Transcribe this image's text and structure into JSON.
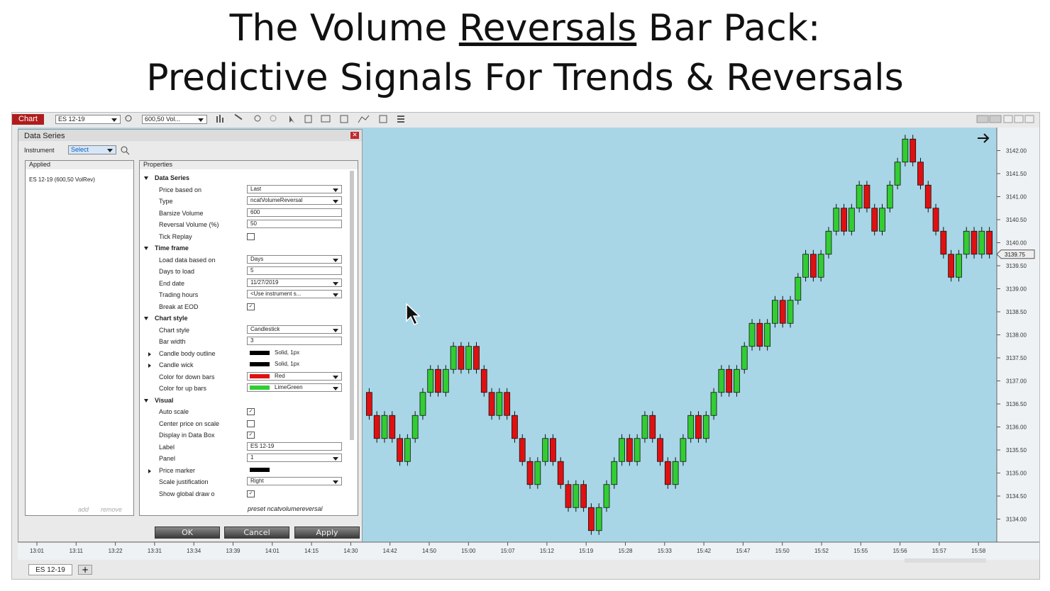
{
  "header": {
    "title_before": "The Volume ",
    "title_underlined": "Reversals",
    "title_after": " Bar Pack:",
    "title_line2": "Predictive Signals For Trends & Reversals"
  },
  "toolbar": {
    "tab": "Chart",
    "instrument": "ES 12-19",
    "series": "600,50 Vol..."
  },
  "dialog": {
    "title": "Data Series",
    "instrument_label": "Instrument",
    "instrument_value": "Select",
    "applied_header": "Applied",
    "applied_item": "ES 12-19 (600,50 VolRev)",
    "add": "add",
    "remove": "remove",
    "properties_header": "Properties",
    "sections": [
      {
        "name": "Data Series",
        "rows": [
          {
            "label": "Price based on",
            "value": "Last",
            "input": "dropdown"
          },
          {
            "label": "Type",
            "value": "ncatVolumeReversal",
            "input": "dropdown"
          },
          {
            "label": "Barsize Volume",
            "value": "600",
            "input": "text"
          },
          {
            "label": "Reversal Volume (%)",
            "value": "50",
            "input": "text"
          },
          {
            "label": "Tick Replay",
            "checked": false
          }
        ]
      },
      {
        "name": "Time frame",
        "rows": [
          {
            "label": "Load data based on",
            "value": "Days",
            "input": "dropdown"
          },
          {
            "label": "Days to load",
            "value": "5",
            "input": "text"
          },
          {
            "label": "End date",
            "value": "11/27/2019",
            "input": "dropdown"
          },
          {
            "label": "Trading hours",
            "value": "<Use instrument s...",
            "input": "dropdown"
          },
          {
            "label": "Break at EOD",
            "checked": true
          }
        ]
      },
      {
        "name": "Chart style",
        "rows": [
          {
            "label": "Chart style",
            "value": "Candlestick",
            "input": "dropdown"
          },
          {
            "label": "Bar width",
            "value": "3",
            "input": "text"
          },
          {
            "label": "Candle body outline",
            "value": "Solid, 1px",
            "swatch": "#000000",
            "expandable": true
          },
          {
            "label": "Candle wick",
            "value": "Solid, 1px",
            "swatch": "#000000",
            "expandable": true
          },
          {
            "label": "Color for down bars",
            "value": "Red",
            "input": "dropdown",
            "swatch": "#e01010"
          },
          {
            "label": "Color for up bars",
            "value": "LimeGreen",
            "input": "dropdown",
            "swatch": "#32cd32"
          }
        ]
      },
      {
        "name": "Visual",
        "rows": [
          {
            "label": "Auto scale",
            "checked": true
          },
          {
            "label": "Center price on scale",
            "checked": false
          },
          {
            "label": "Display in Data Box",
            "checked": true
          },
          {
            "label": "Label",
            "value": "ES 12-19",
            "input": "text"
          },
          {
            "label": "Panel",
            "value": "1",
            "input": "dropdown"
          },
          {
            "label": "Price marker",
            "swatch": "#000000",
            "expandable": true
          },
          {
            "label": "Scale justification",
            "value": "Right",
            "input": "dropdown"
          },
          {
            "label": "Show global draw o",
            "checked": true
          }
        ]
      }
    ],
    "preset": "preset ncatvolumereversal",
    "buttons": [
      "OK",
      "Cancel",
      "Apply"
    ]
  },
  "chart_data": {
    "type": "candlestick",
    "up_color": "#32cd32",
    "down_color": "#e01010",
    "open": [
      3136.75,
      3136.25,
      3135.75,
      3136.25,
      3135.75,
      3135.25,
      3135.75,
      3136.25,
      3136.75,
      3137.25,
      3136.75,
      3137.25,
      3137.75,
      3137.25,
      3137.75,
      3137.25,
      3136.75,
      3136.25,
      3136.75,
      3136.25,
      3135.75,
      3135.25,
      3134.75,
      3135.25,
      3135.75,
      3135.25,
      3134.75,
      3134.25,
      3134.75,
      3134.25,
      3133.75,
      3134.25,
      3134.75,
      3135.25,
      3135.75,
      3135.25,
      3135.75,
      3136.25,
      3135.75,
      3135.25,
      3134.75,
      3135.25,
      3135.75,
      3136.25,
      3135.75,
      3136.25,
      3136.75,
      3137.25,
      3136.75,
      3137.25,
      3137.75,
      3138.25,
      3137.75,
      3138.25,
      3138.75,
      3138.25,
      3138.75,
      3139.25,
      3139.75,
      3139.25,
      3139.75,
      3140.25,
      3140.75,
      3140.25,
      3140.75,
      3141.25,
      3140.75,
      3140.25,
      3140.75,
      3141.25,
      3141.75,
      3142.25,
      3141.75,
      3141.25,
      3140.75,
      3140.25,
      3139.75,
      3139.25,
      3139.75,
      3140.25,
      3139.75,
      3140.25
    ],
    "close": [
      3136.25,
      3135.75,
      3136.25,
      3135.75,
      3135.25,
      3135.75,
      3136.25,
      3136.75,
      3137.25,
      3136.75,
      3137.25,
      3137.75,
      3137.25,
      3137.75,
      3137.25,
      3136.75,
      3136.25,
      3136.75,
      3136.25,
      3135.75,
      3135.25,
      3134.75,
      3135.25,
      3135.75,
      3135.25,
      3134.75,
      3134.25,
      3134.75,
      3134.25,
      3133.75,
      3134.25,
      3134.75,
      3135.25,
      3135.75,
      3135.25,
      3135.75,
      3136.25,
      3135.75,
      3135.25,
      3134.75,
      3135.25,
      3135.75,
      3136.25,
      3135.75,
      3136.25,
      3136.75,
      3137.25,
      3136.75,
      3137.25,
      3137.75,
      3138.25,
      3137.75,
      3138.25,
      3138.75,
      3138.25,
      3138.75,
      3139.25,
      3139.75,
      3139.25,
      3139.75,
      3140.25,
      3140.75,
      3140.25,
      3140.75,
      3141.25,
      3140.75,
      3140.25,
      3140.75,
      3141.25,
      3141.75,
      3142.25,
      3141.75,
      3141.25,
      3140.75,
      3140.25,
      3139.75,
      3139.25,
      3139.75,
      3140.25,
      3139.75,
      3140.25,
      3139.75
    ],
    "ylim": [
      3133.5,
      3142.5
    ],
    "yticks": [
      {
        "value": 3142,
        "label": "3142.00"
      },
      {
        "value": 3141.5,
        "label": "3141.50"
      },
      {
        "value": 3141,
        "label": "3141.00"
      },
      {
        "value": 3140.5,
        "label": "3140.50"
      },
      {
        "value": 3140,
        "label": "3140.00"
      },
      {
        "value": 3139.5,
        "label": "3139.50"
      },
      {
        "value": 3139,
        "label": "3139.00"
      },
      {
        "value": 3138.5,
        "label": "3138.50"
      },
      {
        "value": 3138,
        "label": "3138.00"
      },
      {
        "value": 3137.5,
        "label": "3137.50"
      },
      {
        "value": 3137,
        "label": "3137.00"
      },
      {
        "value": 3136.5,
        "label": "3136.50"
      },
      {
        "value": 3136,
        "label": "3136.00"
      },
      {
        "value": 3135.5,
        "label": "3135.50"
      },
      {
        "value": 3135,
        "label": "3135.00"
      },
      {
        "value": 3134.5,
        "label": "3134.50"
      },
      {
        "value": 3134,
        "label": "3134.00"
      }
    ],
    "current_price": {
      "value": 3139.75,
      "label": "3139.75"
    },
    "xtick_labels": [
      "13:01",
      "13:11",
      "13:22",
      "13:31",
      "13:34",
      "13:39",
      "14:01",
      "14:15",
      "14:30",
      "14:42",
      "14:50",
      "15:00",
      "15:07",
      "15:12",
      "15:19",
      "15:28",
      "15:33",
      "15:42",
      "15:47",
      "15:50",
      "15:52",
      "15:55",
      "15:56",
      "15:57",
      "15:58"
    ]
  },
  "footer_tab": "ES 12-19"
}
